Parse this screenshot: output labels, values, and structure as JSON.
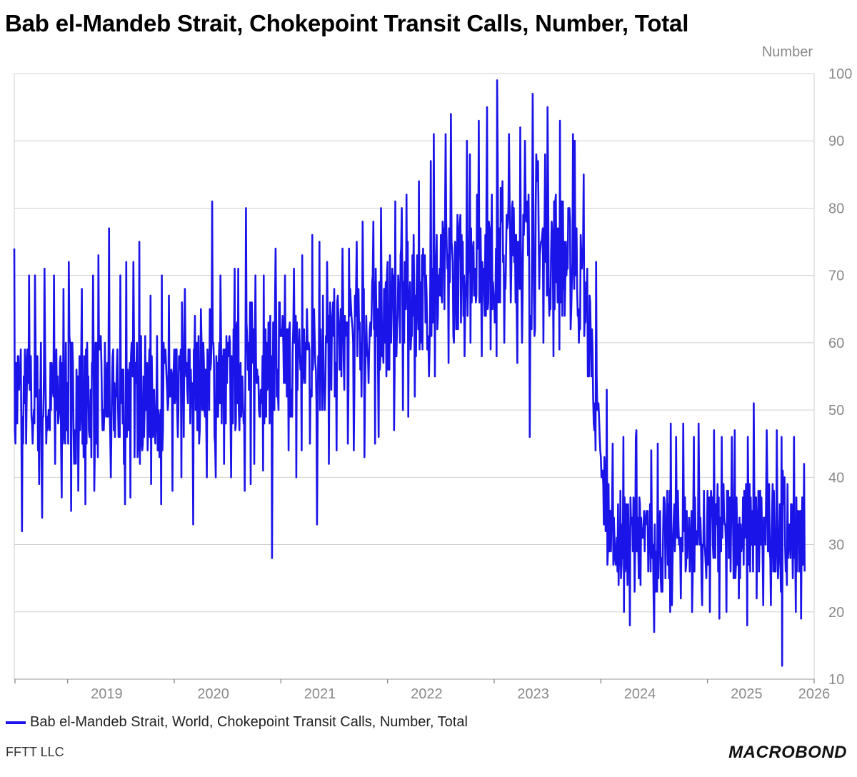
{
  "title": "Bab el-Mandeb Strait, Chokepoint Transit Calls, Number, Total",
  "unit_label": "Number",
  "legend_label": "Bab el-Mandeb Strait, World, Chokepoint Transit Calls, Number, Total",
  "source": "FFTT LLC",
  "brand": "MACROBOND",
  "colors": {
    "series": "#1a14e8",
    "grid": "#cfcfcf",
    "tick_text": "#8a8a8a"
  },
  "chart_data": {
    "type": "line",
    "title": "Bab el-Mandeb Strait, Chokepoint Transit Calls, Number, Total",
    "ylabel": "Number",
    "ylim": [
      10,
      100
    ],
    "yticks": [
      10,
      20,
      30,
      40,
      50,
      60,
      70,
      80,
      90,
      100
    ],
    "xlim": [
      "2018-07-01",
      "2026-01-01"
    ],
    "xticks": [
      "2019",
      "2020",
      "2021",
      "2022",
      "2023",
      "2024",
      "2025",
      "2026"
    ],
    "y_axis_side": "right",
    "grid": true,
    "legend_position": "bottom-left",
    "series": [
      {
        "name": "Bab el-Mandeb Strait, World, Chokepoint Transit Calls, Number, Total",
        "x": [
          "2018-07",
          "2018-08",
          "2018-09",
          "2018-10",
          "2018-11",
          "2018-12",
          "2019-01",
          "2019-02",
          "2019-03",
          "2019-04",
          "2019-05",
          "2019-06",
          "2019-07",
          "2019-08",
          "2019-09",
          "2019-10",
          "2019-11",
          "2019-12",
          "2020-01",
          "2020-02",
          "2020-03",
          "2020-04",
          "2020-05",
          "2020-06",
          "2020-07",
          "2020-08",
          "2020-09",
          "2020-10",
          "2020-11",
          "2020-12",
          "2021-01",
          "2021-02",
          "2021-03",
          "2021-04",
          "2021-05",
          "2021-06",
          "2021-07",
          "2021-08",
          "2021-09",
          "2021-10",
          "2021-11",
          "2021-12",
          "2022-01",
          "2022-02",
          "2022-03",
          "2022-04",
          "2022-05",
          "2022-06",
          "2022-07",
          "2022-08",
          "2022-09",
          "2022-10",
          "2022-11",
          "2022-12",
          "2023-01",
          "2023-02",
          "2023-03",
          "2023-04",
          "2023-05",
          "2023-06",
          "2023-07",
          "2023-08",
          "2023-09",
          "2023-10",
          "2023-11",
          "2023-12",
          "2024-01",
          "2024-02",
          "2024-03",
          "2024-04",
          "2024-05",
          "2024-06",
          "2024-07",
          "2024-08",
          "2024-09",
          "2024-10",
          "2024-11",
          "2024-12",
          "2025-01",
          "2025-02",
          "2025-03",
          "2025-04",
          "2025-05",
          "2025-06",
          "2025-07",
          "2025-08",
          "2025-09",
          "2025-10",
          "2025-11"
        ],
        "mean": [
          52,
          52,
          51,
          52,
          51,
          52,
          52,
          52,
          51,
          52,
          52,
          52,
          51,
          52,
          52,
          51,
          52,
          52,
          52,
          53,
          52,
          54,
          55,
          55,
          54,
          55,
          56,
          55,
          56,
          56,
          57,
          57,
          58,
          58,
          59,
          59,
          60,
          60,
          61,
          61,
          62,
          63,
          64,
          65,
          66,
          67,
          67,
          68,
          69,
          70,
          71,
          72,
          73,
          73,
          74,
          74,
          75,
          75,
          75,
          75,
          74,
          74,
          73,
          72,
          68,
          58,
          40,
          33,
          31,
          31,
          31,
          31,
          30,
          30,
          31,
          31,
          31,
          31,
          31,
          32,
          32,
          32,
          32,
          32,
          32,
          33,
          32,
          32,
          32
        ],
        "max": [
          74,
          70,
          70,
          71,
          70,
          68,
          72,
          68,
          70,
          73,
          77,
          70,
          72,
          72,
          75,
          67,
          70,
          67,
          66,
          68,
          64,
          65,
          81,
          70,
          71,
          71,
          80,
          70,
          70,
          74,
          70,
          71,
          73,
          76,
          75,
          72,
          74,
          74,
          75,
          78,
          78,
          80,
          81,
          80,
          82,
          84,
          87,
          91,
          91,
          94,
          90,
          88,
          93,
          95,
          99,
          91,
          92,
          90,
          97,
          88,
          95,
          93,
          91,
          90,
          85,
          72,
          53,
          45,
          46,
          46,
          47,
          44,
          45,
          48,
          46,
          48,
          46,
          48,
          47,
          46,
          46,
          47,
          46,
          51,
          47,
          47,
          46,
          46,
          42
        ],
        "min": [
          32,
          40,
          39,
          34,
          42,
          37,
          35,
          38,
          36,
          38,
          40,
          40,
          36,
          37,
          38,
          39,
          36,
          38,
          40,
          34,
          33,
          40,
          40,
          42,
          40,
          38,
          39,
          42,
          41,
          28,
          44,
          40,
          44,
          45,
          33,
          42,
          44,
          45,
          44,
          43,
          45,
          46,
          47,
          50,
          49,
          52,
          55,
          55,
          57,
          60,
          58,
          60,
          58,
          59,
          58,
          60,
          57,
          60,
          46,
          60,
          58,
          59,
          62,
          60,
          55,
          44,
          27,
          26,
          20,
          18,
          24,
          22,
          17,
          20,
          21,
          22,
          20,
          21,
          20,
          19,
          20,
          22,
          18,
          22,
          21,
          21,
          12,
          20,
          19
        ]
      }
    ]
  }
}
